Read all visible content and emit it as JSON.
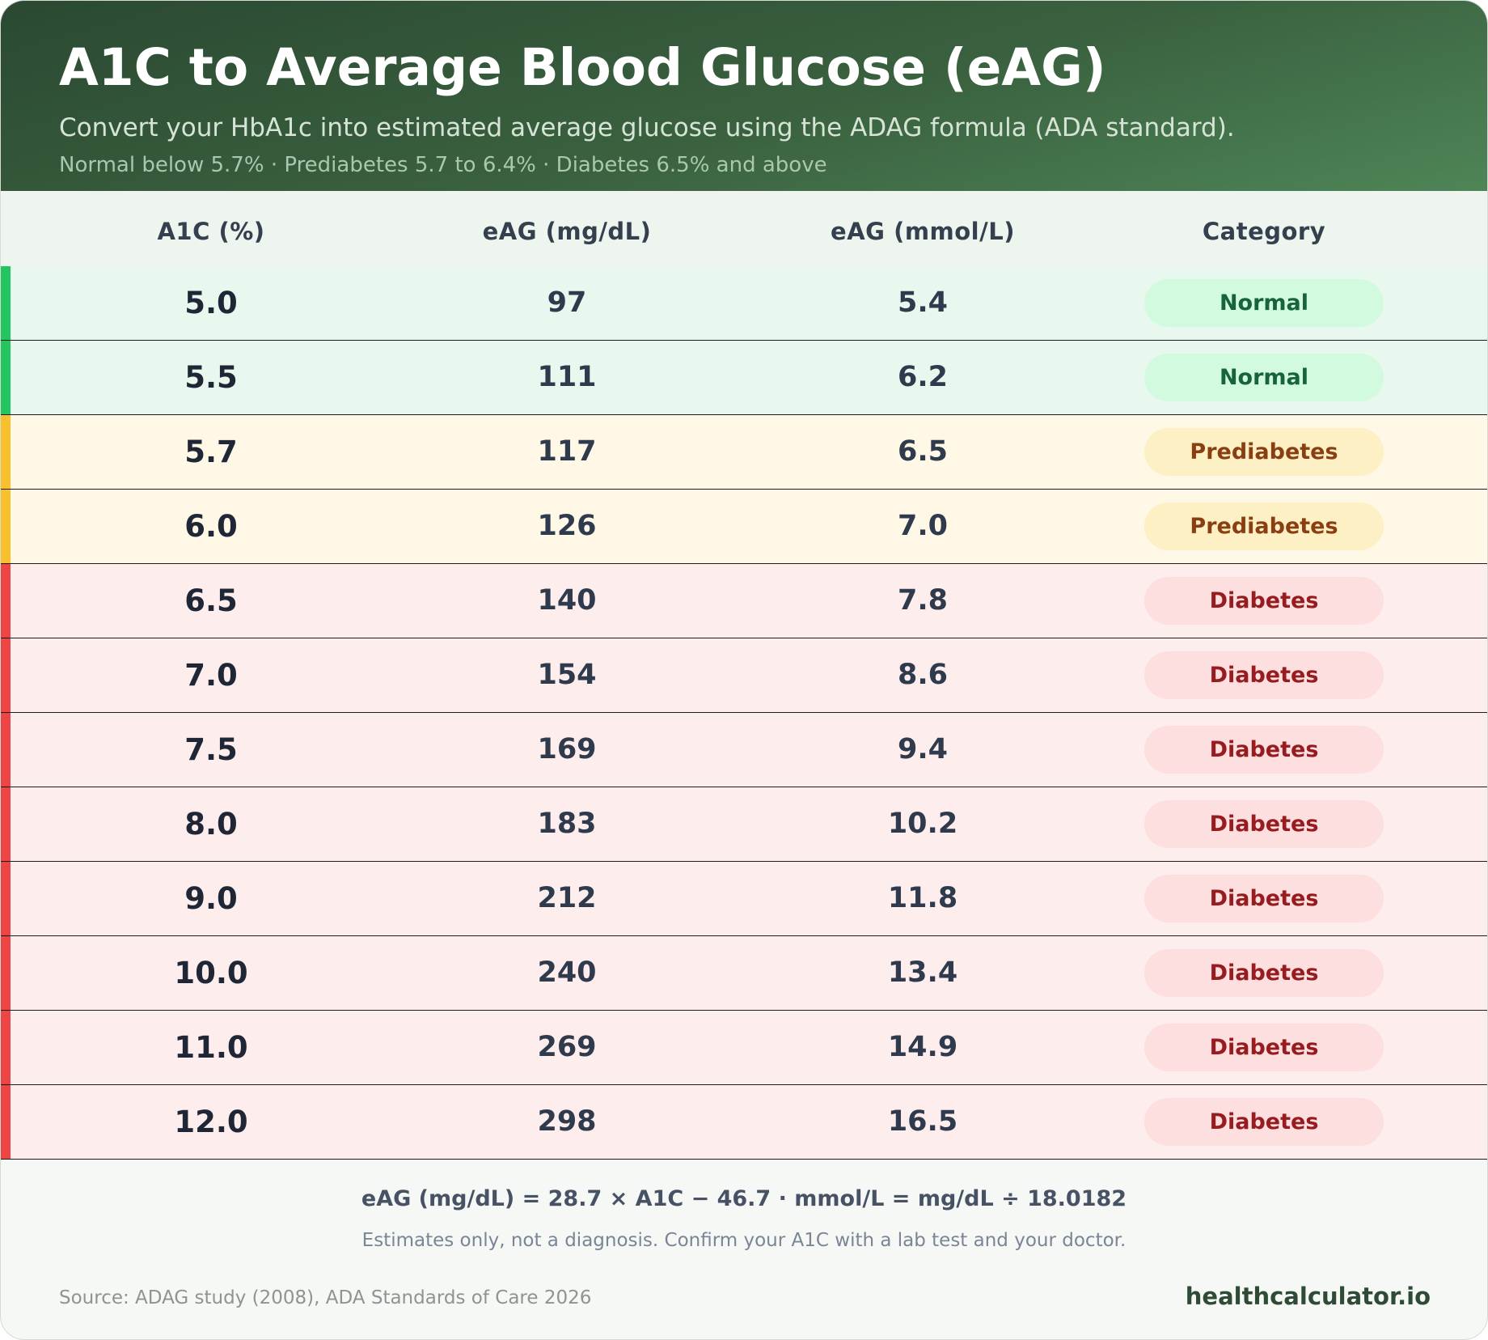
{
  "header": {
    "title": "A1C to Average Blood Glucose (eAG)",
    "subtitle": "Convert your HbA1c into estimated average glucose using the ADAG formula (ADA standard).",
    "ranges": "Normal below 5.7% · Prediabetes 5.7 to 6.4% · Diabetes 6.5% and above"
  },
  "table": {
    "columns": [
      "A1C (%)",
      "eAG (mg/dL)",
      "eAG (mmol/L)",
      "Category"
    ],
    "rows": [
      {
        "a1c": "5.0",
        "mg": "97",
        "mmol": "5.4",
        "category": "Normal"
      },
      {
        "a1c": "5.5",
        "mg": "111",
        "mmol": "6.2",
        "category": "Normal"
      },
      {
        "a1c": "5.7",
        "mg": "117",
        "mmol": "6.5",
        "category": "Prediabetes"
      },
      {
        "a1c": "6.0",
        "mg": "126",
        "mmol": "7.0",
        "category": "Prediabetes"
      },
      {
        "a1c": "6.5",
        "mg": "140",
        "mmol": "7.8",
        "category": "Diabetes"
      },
      {
        "a1c": "7.0",
        "mg": "154",
        "mmol": "8.6",
        "category": "Diabetes"
      },
      {
        "a1c": "7.5",
        "mg": "169",
        "mmol": "9.4",
        "category": "Diabetes"
      },
      {
        "a1c": "8.0",
        "mg": "183",
        "mmol": "10.2",
        "category": "Diabetes"
      },
      {
        "a1c": "9.0",
        "mg": "212",
        "mmol": "11.8",
        "category": "Diabetes"
      },
      {
        "a1c": "10.0",
        "mg": "240",
        "mmol": "13.4",
        "category": "Diabetes"
      },
      {
        "a1c": "11.0",
        "mg": "269",
        "mmol": "14.9",
        "category": "Diabetes"
      },
      {
        "a1c": "12.0",
        "mg": "298",
        "mmol": "16.5",
        "category": "Diabetes"
      }
    ]
  },
  "footer": {
    "formula": "eAG (mg/dL) = 28.7 × A1C − 46.7 · mmol/L = mg/dL ÷ 18.0182",
    "disclaimer": "Estimates only, not a diagnosis. Confirm your A1C with a lab test and your doctor.",
    "source": "Source: ADAG study (2008), ADA Standards of Care 2026",
    "brand": "healthcalculator.io"
  },
  "colors": {
    "normal": "#22c55e",
    "prediabetes": "#f7c02c",
    "diabetes": "#ef4444",
    "header_dark": "#2b4932",
    "header_light": "#4e8557"
  }
}
